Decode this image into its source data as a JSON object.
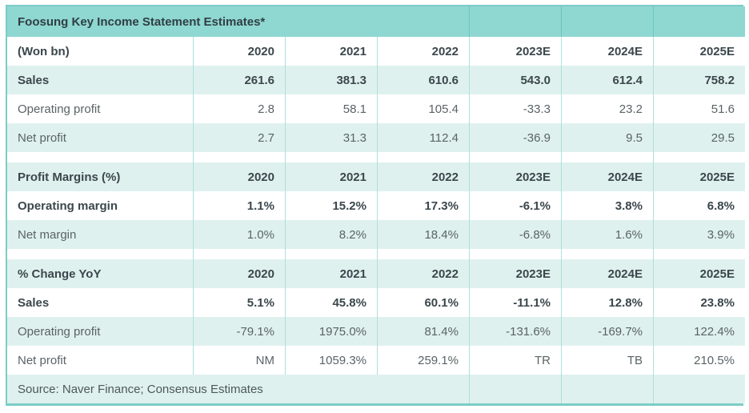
{
  "chart_data": {
    "type": "table",
    "title": "Foosung Key Income Statement Estimates*",
    "columns": [
      "2020",
      "2021",
      "2022",
      "2023E",
      "2024E",
      "2025E"
    ],
    "sections": [
      {
        "header": "(Won bn)",
        "rows": [
          {
            "label": "Sales",
            "bold": true,
            "values": [
              "261.6",
              "381.3",
              "610.6",
              "543.0",
              "612.4",
              "758.2"
            ]
          },
          {
            "label": "Operating profit",
            "bold": false,
            "values": [
              "2.8",
              "58.1",
              "105.4",
              "-33.3",
              "23.2",
              "51.6"
            ]
          },
          {
            "label": "Net profit",
            "bold": false,
            "values": [
              "2.7",
              "31.3",
              "112.4",
              "-36.9",
              "9.5",
              "29.5"
            ]
          }
        ]
      },
      {
        "header": "Profit Margins (%)",
        "rows": [
          {
            "label": "Operating margin",
            "bold": true,
            "values": [
              "1.1%",
              "15.2%",
              "17.3%",
              "-6.1%",
              "3.8%",
              "6.8%"
            ]
          },
          {
            "label": "Net margin",
            "bold": false,
            "values": [
              "1.0%",
              "8.2%",
              "18.4%",
              "-6.8%",
              "1.6%",
              "3.9%"
            ]
          }
        ]
      },
      {
        "header": "% Change YoY",
        "rows": [
          {
            "label": "Sales",
            "bold": true,
            "values": [
              "5.1%",
              "45.8%",
              "60.1%",
              "-11.1%",
              "12.8%",
              "23.8%"
            ]
          },
          {
            "label": "Operating profit",
            "bold": false,
            "values": [
              "-79.1%",
              "1975.0%",
              "81.4%",
              "-131.6%",
              "-169.7%",
              "122.4%"
            ]
          },
          {
            "label": "Net profit",
            "bold": false,
            "values": [
              "NM",
              "1059.3%",
              "259.1%",
              "TR",
              "TB",
              "210.5%"
            ]
          }
        ]
      }
    ],
    "source": "Source: Naver Finance; Consensus Estimates"
  },
  "colors": {
    "title_teal": "#8fd7d1",
    "row_teal": "#dff1ef",
    "grid_teal": "#ace0dc",
    "frame_teal": "#7cccc6",
    "text_dark": "#3b474c",
    "text_gray": "#5a6366"
  }
}
